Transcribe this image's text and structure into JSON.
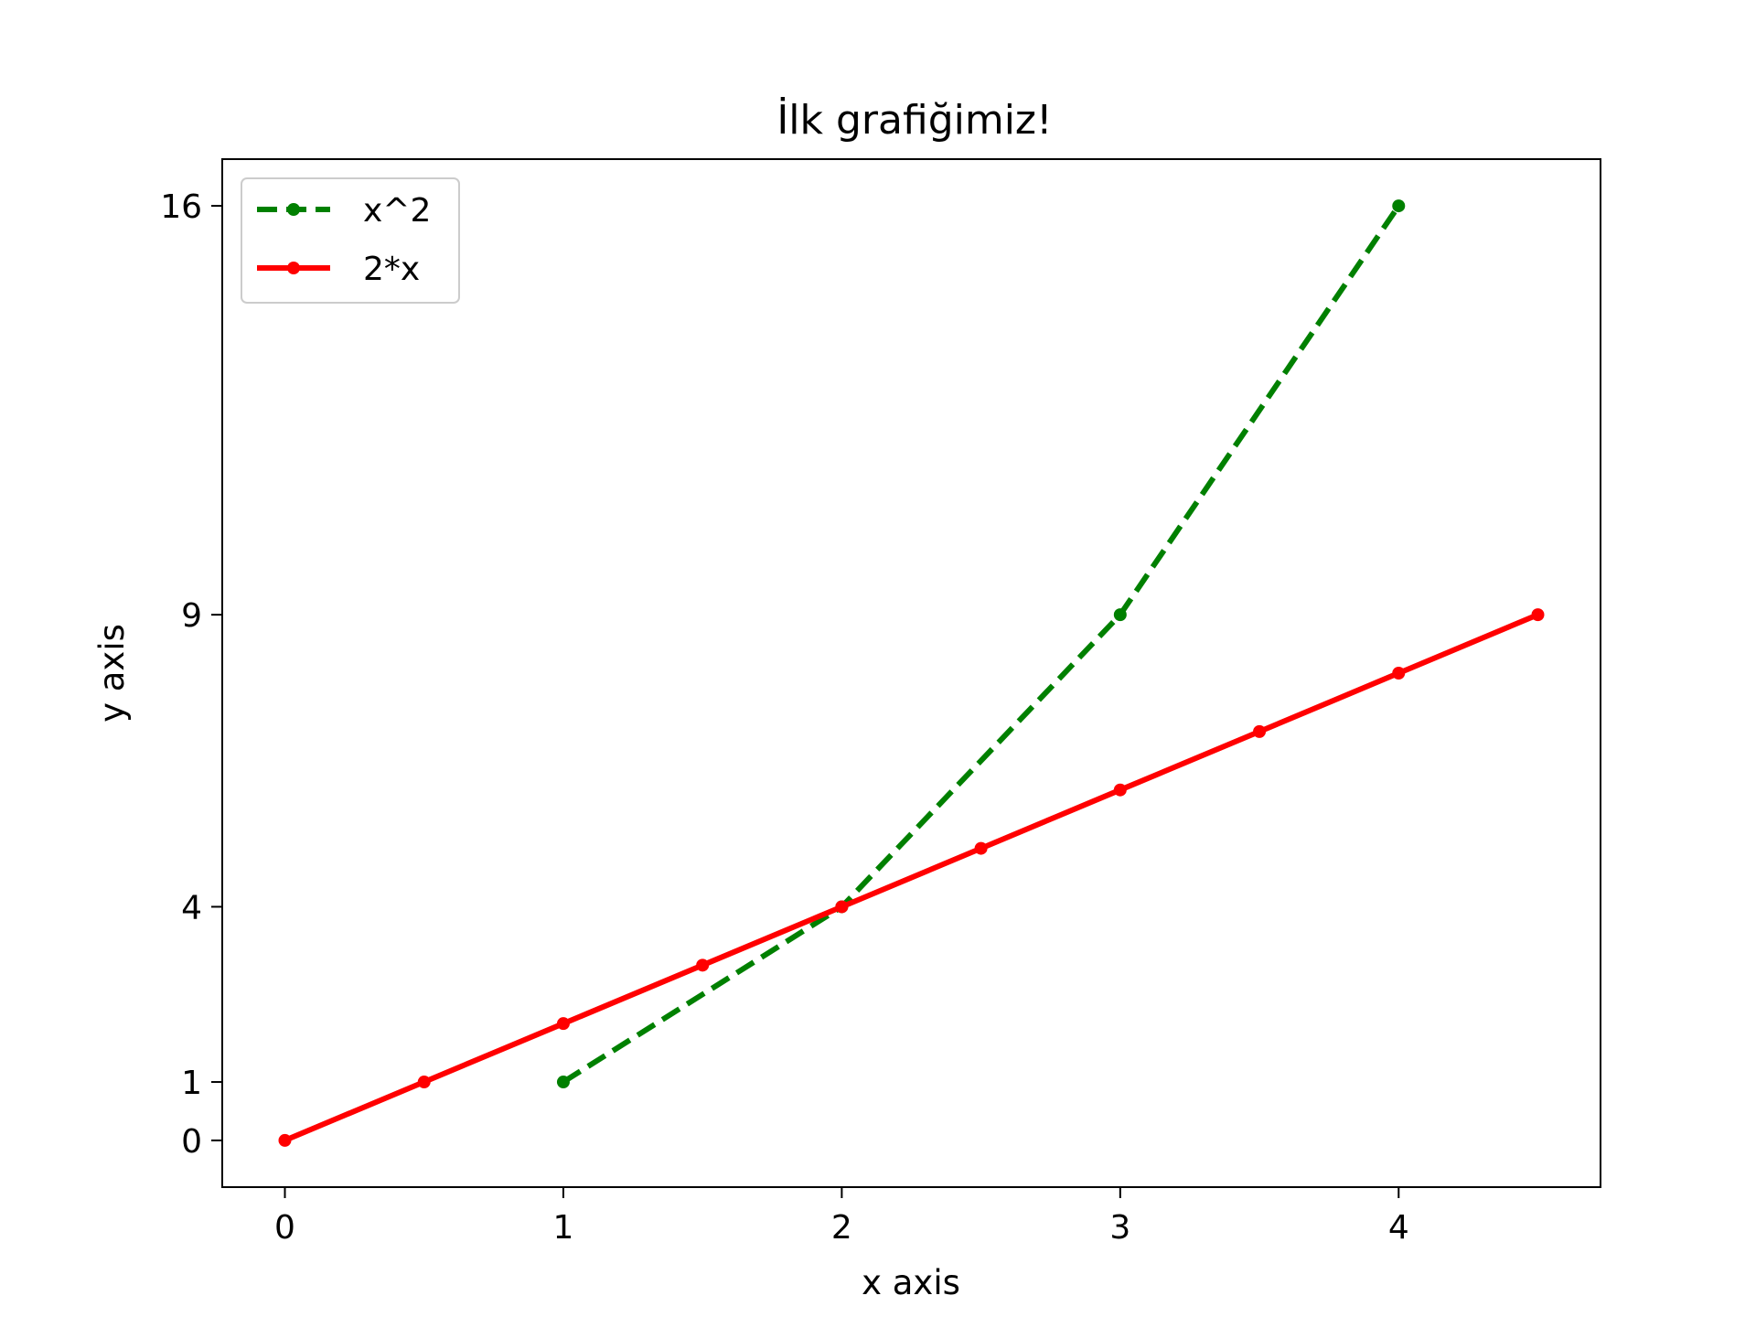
{
  "chart_data": {
    "type": "line",
    "title": "İlk grafiğimiz!",
    "xlabel": "x axis",
    "ylabel": "y axis",
    "xlim": [
      -0.225,
      4.725
    ],
    "ylim": [
      -0.8,
      16.8
    ],
    "xticks": [
      0,
      1,
      2,
      3,
      4
    ],
    "xtick_labels": [
      "0",
      "1",
      "2",
      "3",
      "4"
    ],
    "yticks": [
      0,
      1,
      4,
      9,
      16
    ],
    "ytick_labels": [
      "0",
      "1",
      "4",
      "9",
      "16"
    ],
    "grid": false,
    "legend_position": "top-left",
    "series": [
      {
        "name": "x^2",
        "color": "#008000",
        "line_style": "dashed",
        "marker": "dot",
        "x": [
          1,
          2,
          3,
          4
        ],
        "y": [
          1,
          4,
          9,
          16
        ]
      },
      {
        "name": "2*x",
        "color": "#ff0000",
        "line_style": "solid",
        "marker": "dot",
        "x": [
          0,
          0.5,
          1,
          1.5,
          2,
          2.5,
          3,
          3.5,
          4,
          4.5
        ],
        "y": [
          0,
          1,
          2,
          3,
          4,
          5,
          6,
          7,
          8,
          9
        ]
      }
    ]
  }
}
